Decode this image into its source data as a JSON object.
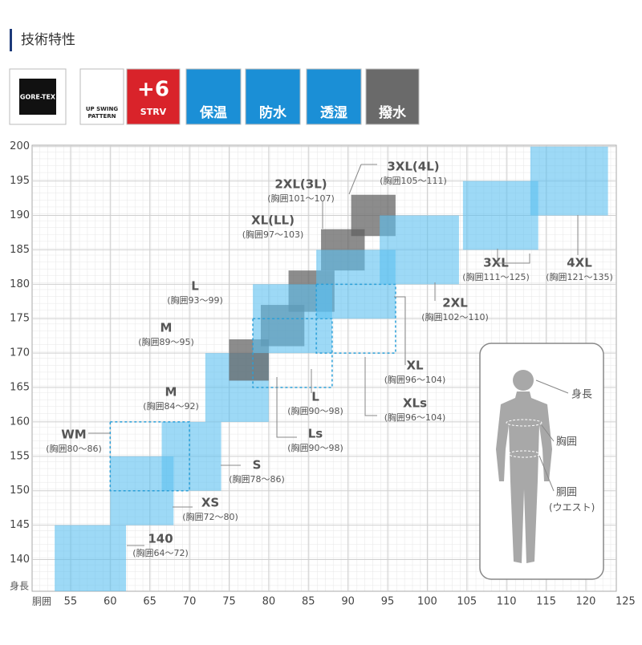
{
  "header": {
    "title": "技術特性"
  },
  "badges": [
    {
      "lines": [
        "GORE-TEX"
      ]
    },
    {
      "lines": [
        "UP SWING",
        "PATTERN"
      ]
    },
    {
      "lines": [
        "+6",
        "STRV"
      ]
    },
    {
      "lines": [
        "保温"
      ]
    },
    {
      "lines": [
        "防水"
      ]
    },
    {
      "lines": [
        "透湿"
      ]
    },
    {
      "lines": [
        "撥水"
      ]
    }
  ],
  "chart_data": {
    "type": "size-chart",
    "x_label": "胴囲",
    "y_label": "身長",
    "xlim": [
      50.15,
      123.85
    ],
    "ylim": [
      135.4,
      200.2
    ],
    "xticks": [
      55,
      60,
      65,
      70,
      75,
      80,
      85,
      90,
      95,
      100,
      105,
      110,
      115,
      120,
      125
    ],
    "yticks": [
      140,
      145,
      150,
      155,
      160,
      165,
      170,
      175,
      180,
      185,
      190,
      195,
      200
    ],
    "grid": true,
    "series": [
      {
        "name": "140",
        "range_label": "(胸囲64～72)",
        "style": "fill",
        "color": "#5bc0f0",
        "chest": [
          53,
          62
        ],
        "height": [
          135.4,
          145
        ]
      },
      {
        "name": "XS",
        "range_label": "(胸囲72～80)",
        "style": "fill",
        "color": "#5bc0f0",
        "chest": [
          60,
          68
        ],
        "height": [
          145,
          155
        ]
      },
      {
        "name": "S",
        "range_label": "(胸囲78～86)",
        "style": "fill",
        "color": "#5bc0f0",
        "chest": [
          66.5,
          74
        ],
        "height": [
          150,
          160
        ]
      },
      {
        "name": "WM",
        "range_label": "(胸囲80～86)",
        "style": "dashed",
        "color": "#2a9fd8",
        "chest": [
          60,
          70
        ],
        "height": [
          150,
          160
        ]
      },
      {
        "name": "M",
        "range_label": "(胸囲84～92)",
        "style": "fill",
        "color": "#5bc0f0",
        "chest": [
          72,
          80
        ],
        "height": [
          160,
          170
        ]
      },
      {
        "name": "M",
        "range_label": "(胸囲89～95)",
        "style": "fill",
        "color": "#606060",
        "chest": [
          75,
          80
        ],
        "height": [
          166,
          172
        ]
      },
      {
        "name": "L",
        "range_label": "(胸囲93～99)",
        "style": "fill",
        "color": "#606060",
        "chest": [
          79,
          84.5
        ],
        "height": [
          171,
          177
        ]
      },
      {
        "name": "XL(LL)",
        "range_label": "(胸囲97～103)",
        "style": "fill",
        "color": "#606060",
        "chest": [
          82.5,
          88.3
        ],
        "height": [
          176,
          182
        ]
      },
      {
        "name": "2XL(3L)",
        "range_label": "(胸囲101～107)",
        "style": "fill",
        "color": "#606060",
        "chest": [
          86.6,
          92.1
        ],
        "height": [
          182,
          188
        ]
      },
      {
        "name": "3XL(4L)",
        "range_label": "(胸囲105～111)",
        "style": "fill",
        "color": "#606060",
        "chest": [
          90.4,
          96
        ],
        "height": [
          187,
          193
        ]
      },
      {
        "name": "L",
        "range_label": "(胸囲90～98)",
        "style": "fill",
        "color": "#5bc0f0",
        "chest": [
          78,
          88
        ],
        "height": [
          170,
          180
        ]
      },
      {
        "name": "Ls",
        "range_label": "(胸囲90～98)",
        "style": "dashed",
        "color": "#2a9fd8",
        "chest": [
          78,
          88
        ],
        "height": [
          165,
          175
        ]
      },
      {
        "name": "XL",
        "range_label": "(胸囲96～104)",
        "style": "fill",
        "color": "#5bc0f0",
        "chest": [
          86,
          96
        ],
        "height": [
          175,
          185
        ]
      },
      {
        "name": "XLs",
        "range_label": "(胸囲96～104)",
        "style": "dashed",
        "color": "#2a9fd8",
        "chest": [
          86,
          96
        ],
        "height": [
          170,
          180
        ]
      },
      {
        "name": "2XL",
        "range_label": "(胸囲102～110)",
        "style": "fill",
        "color": "#5bc0f0",
        "chest": [
          94,
          104
        ],
        "height": [
          180,
          190
        ]
      },
      {
        "name": "3XL",
        "range_label": "(胸囲111～125)",
        "style": "fill",
        "color": "#5bc0f0",
        "chest": [
          104.5,
          114
        ],
        "height": [
          185,
          195
        ]
      },
      {
        "name": "4XL",
        "range_label": "(胸囲121～135)",
        "style": "fill",
        "color": "#5bc0f0",
        "chest": [
          113,
          122.8
        ],
        "height": [
          190,
          200
        ]
      }
    ]
  },
  "figure": {
    "labels": [
      "身長",
      "胸囲",
      "胴囲",
      "(ウエスト)"
    ]
  }
}
